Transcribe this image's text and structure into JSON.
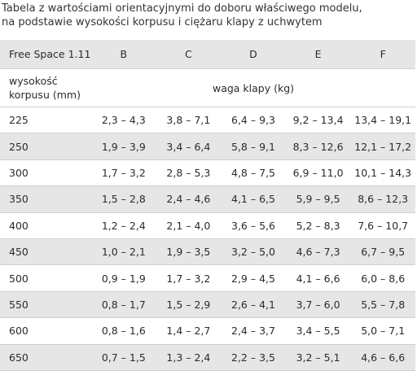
{
  "caption": {
    "line1": "Tabela z wartościami orientacyjnymi do doboru właściwego modelu,",
    "line2": "na podstawie wysokości korpusu i ciężaru klapy z uchwytem"
  },
  "table": {
    "model_label": "Free Space 1.11",
    "columns": [
      "B",
      "C",
      "D",
      "E",
      "F"
    ],
    "row_header_line1": "wysokość",
    "row_header_line2": "korpusu (mm)",
    "value_header": "waga klapy (kg)",
    "rows": [
      {
        "height": "225",
        "values": [
          "2,3 – 4,3",
          "3,8 – 7,1",
          "6,4 – 9,3",
          "9,2 – 13,4",
          "13,4 – 19,1"
        ]
      },
      {
        "height": "250",
        "values": [
          "1,9 – 3,9",
          "3,4 – 6,4",
          "5,8 – 9,1",
          "8,3 – 12,6",
          "12,1 – 17,2"
        ]
      },
      {
        "height": "300",
        "values": [
          "1,7 – 3,2",
          "2,8 – 5,3",
          "4,8 – 7,5",
          "6,9 – 11,0",
          "10,1 – 14,3"
        ]
      },
      {
        "height": "350",
        "values": [
          "1,5 – 2,8",
          "2,4 – 4,6",
          "4,1 – 6,5",
          "5,9 – 9,5",
          "8,6 – 12,3"
        ]
      },
      {
        "height": "400",
        "values": [
          "1,2 – 2,4",
          "2,1 – 4,0",
          "3,6 – 5,6",
          "5,2 – 8,3",
          "7,6 – 10,7"
        ]
      },
      {
        "height": "450",
        "values": [
          "1,0 – 2,1",
          "1,9 – 3,5",
          "3,2 – 5,0",
          "4,6 – 7,3",
          "6,7 – 9,5"
        ]
      },
      {
        "height": "500",
        "values": [
          "0,9 – 1,9",
          "1,7 – 3,2",
          "2,9 – 4,5",
          "4,1 – 6,6",
          "6,0 – 8,6"
        ]
      },
      {
        "height": "550",
        "values": [
          "0,8 – 1,7",
          "1,5 – 2,9",
          "2,6 – 4,1",
          "3,7 – 6,0",
          "5,5 – 7,8"
        ]
      },
      {
        "height": "600",
        "values": [
          "0,8 – 1,6",
          "1,4 – 2,7",
          "2,4 – 3,7",
          "3,4 – 5,5",
          "5,0 – 7,1"
        ]
      },
      {
        "height": "650",
        "values": [
          "0,7 – 1,5",
          "1,3 – 2,4",
          "2,2 – 3,5",
          "3,2 – 5,1",
          "4,6 – 6,6"
        ]
      }
    ]
  },
  "colors": {
    "shaded_row": "#e6e6e6",
    "text": "#2b2b2b",
    "divider": "#cfcfcf"
  }
}
